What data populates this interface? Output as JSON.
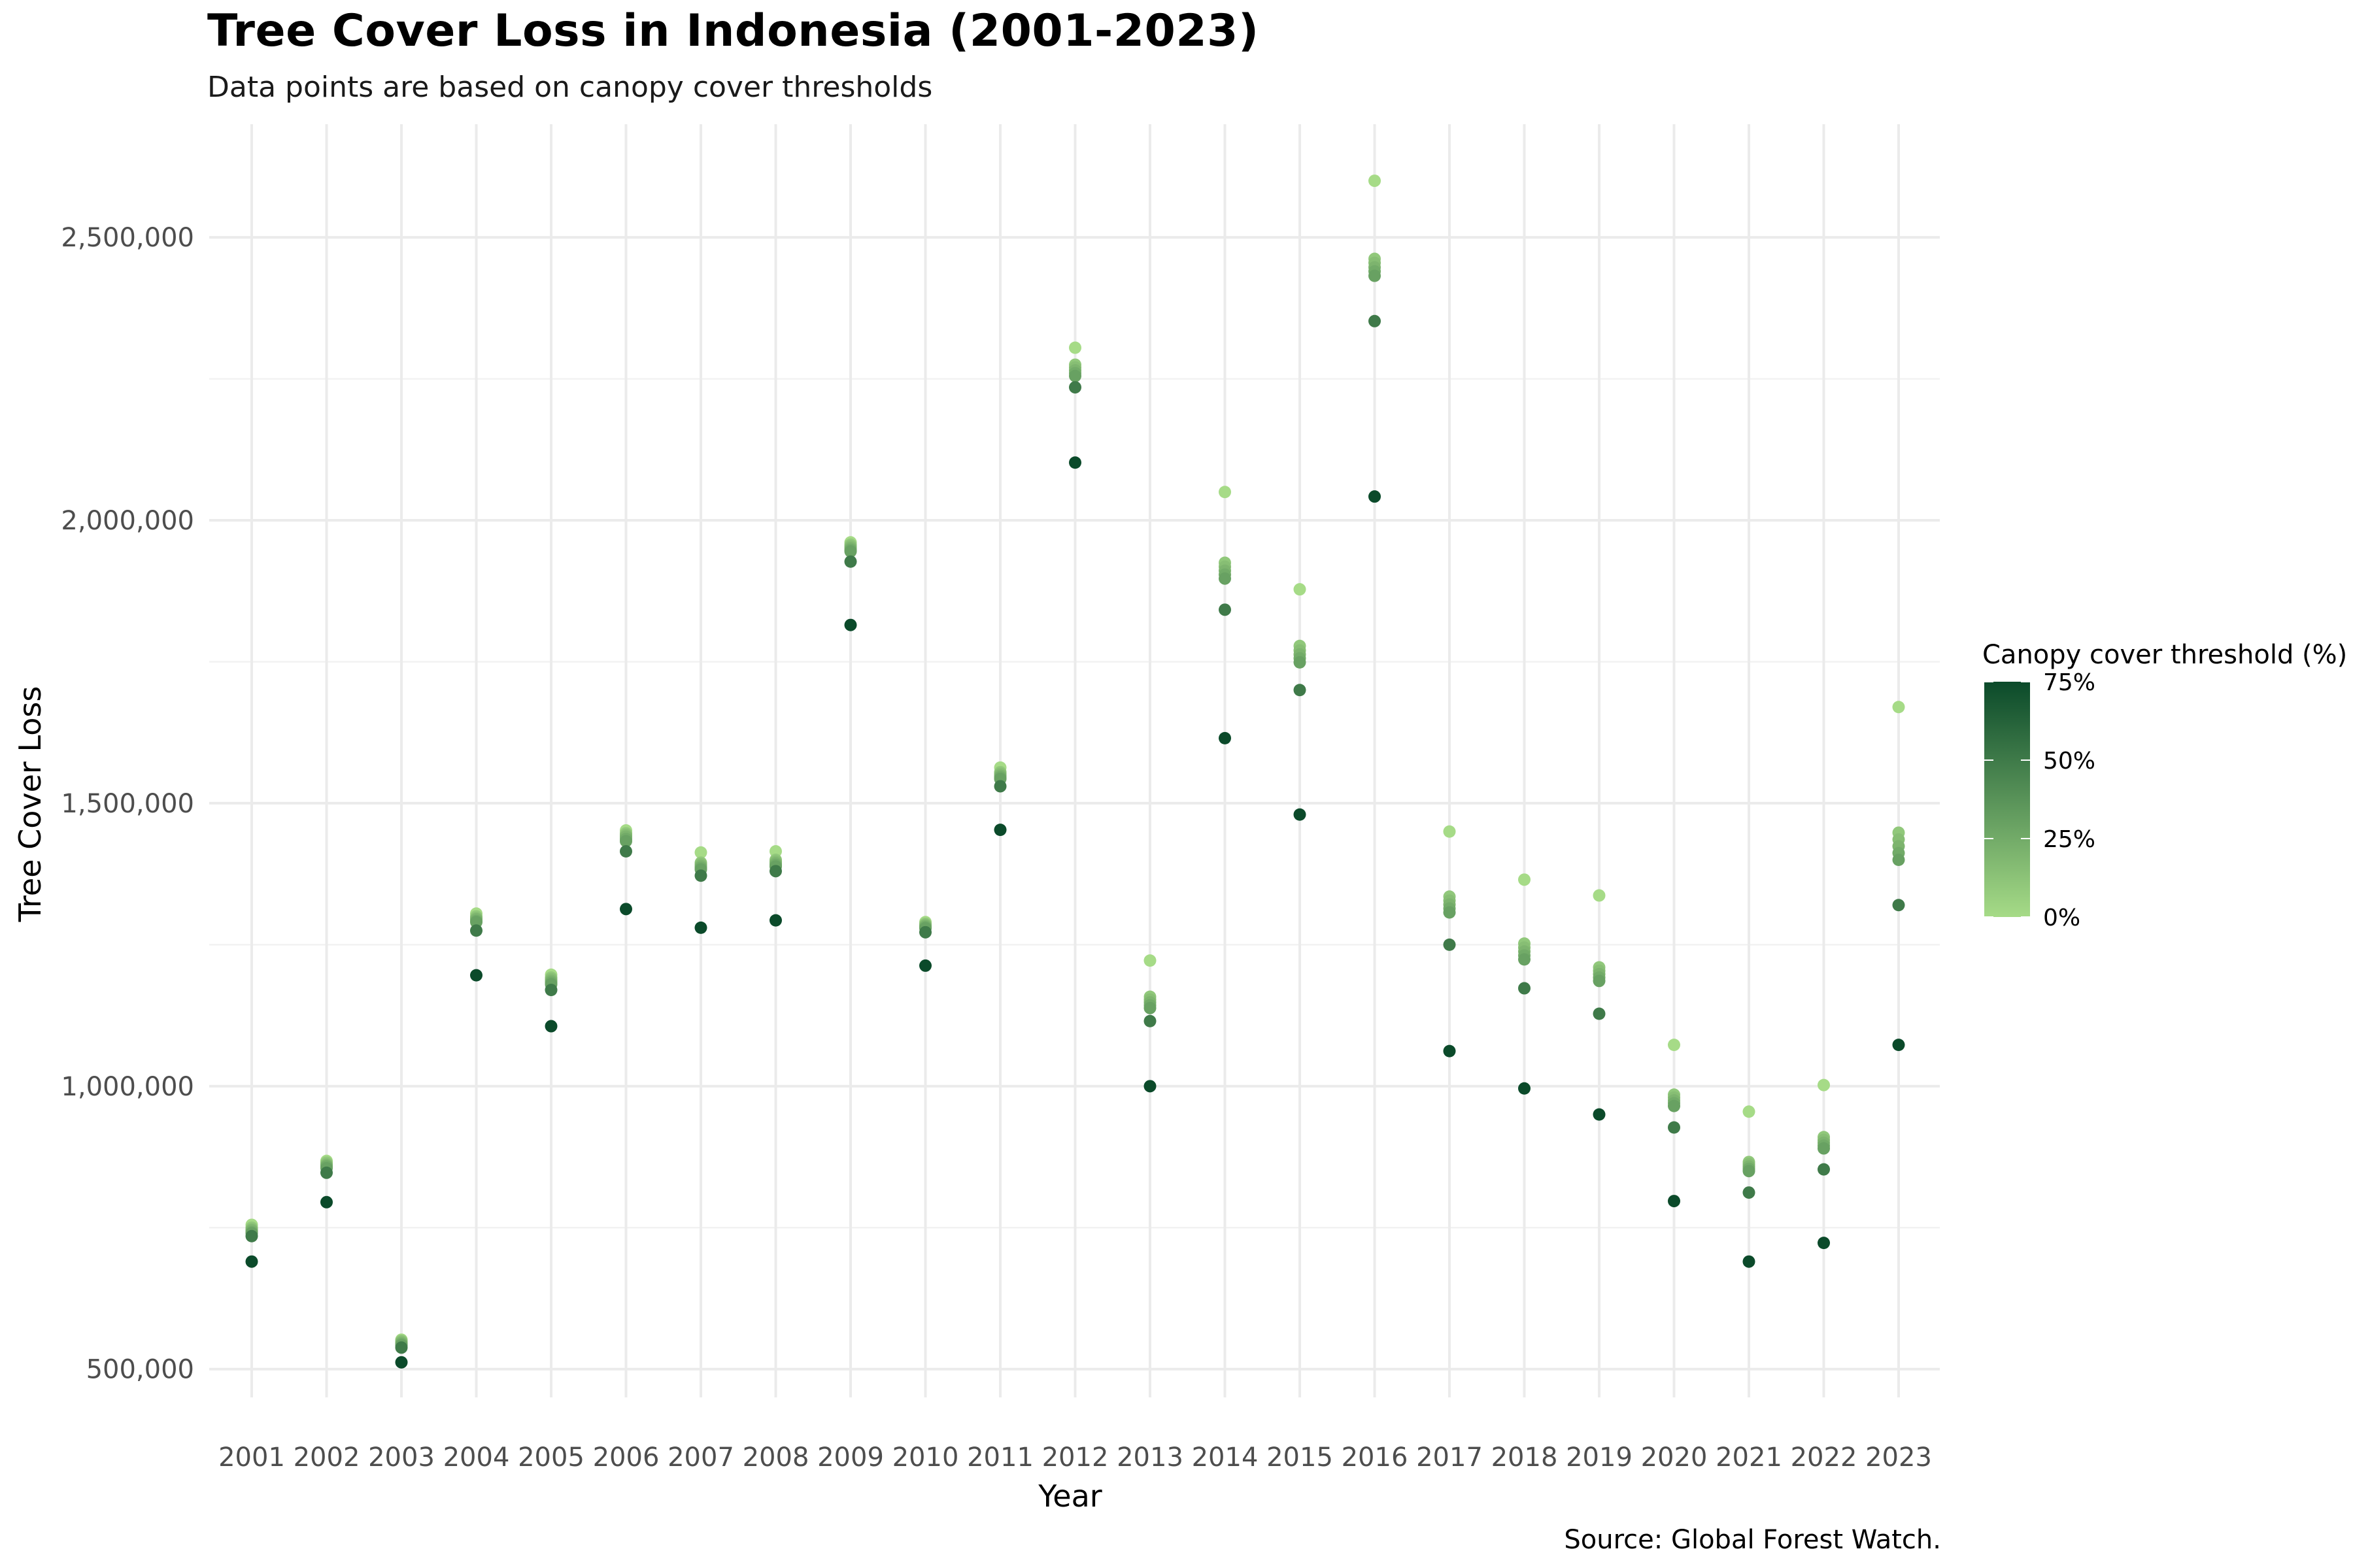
{
  "title": "Tree Cover Loss in Indonesia (2001-2023)",
  "subtitle": "Data points are based on canopy cover thresholds",
  "caption": "Source: Global Forest Watch.",
  "chart_data": {
    "type": "scatter",
    "xlabel": "Year",
    "ylabel": "Tree Cover Loss",
    "ylim": [
      450000,
      2700000
    ],
    "y_ticks": [
      500000,
      1000000,
      1500000,
      2000000,
      2500000
    ],
    "y_tick_labels": [
      "500,000",
      "1,000,000",
      "1,500,000",
      "2,000,000",
      "2,500,000"
    ],
    "grid": true,
    "x": [
      "2001",
      "2002",
      "2003",
      "2004",
      "2005",
      "2006",
      "2007",
      "2008",
      "2009",
      "2010",
      "2011",
      "2012",
      "2013",
      "2014",
      "2015",
      "2016",
      "2017",
      "2018",
      "2019",
      "2020",
      "2021",
      "2022",
      "2023"
    ],
    "thresholds": [
      0,
      10,
      15,
      20,
      25,
      30,
      50,
      75
    ],
    "series": [
      {
        "threshold": 0,
        "values": [
          755000,
          868000,
          552000,
          1305000,
          1197000,
          1452000,
          1413000,
          1415000,
          1961000,
          1290000,
          1563000,
          2305000,
          1222000,
          2050000,
          1878000,
          2600000,
          1450000,
          1365000,
          1337000,
          1073000,
          955000,
          1002000,
          1670000
        ]
      },
      {
        "threshold": 10,
        "values": [
          750000,
          865000,
          550000,
          1300000,
          1192000,
          1447000,
          1395000,
          1400000,
          1957000,
          1287000,
          1555000,
          2275000,
          1158000,
          1925000,
          1778000,
          2462000,
          1335000,
          1252000,
          1210000,
          985000,
          866000,
          910000,
          1448000
        ]
      },
      {
        "threshold": 15,
        "values": [
          747000,
          862000,
          548000,
          1297000,
          1189000,
          1444000,
          1392000,
          1397000,
          1954000,
          1285000,
          1552000,
          2270000,
          1153000,
          1918000,
          1770000,
          2455000,
          1328000,
          1245000,
          1204000,
          980000,
          862000,
          905000,
          1436000
        ]
      },
      {
        "threshold": 20,
        "values": [
          745000,
          860000,
          546000,
          1295000,
          1186000,
          1441000,
          1389000,
          1394000,
          1951000,
          1283000,
          1549000,
          2265000,
          1148000,
          1911000,
          1763000,
          2447000,
          1321000,
          1238000,
          1198000,
          975000,
          858000,
          900000,
          1424000
        ]
      },
      {
        "threshold": 25,
        "values": [
          742000,
          858000,
          544000,
          1292000,
          1183000,
          1437000,
          1386000,
          1391000,
          1948000,
          1281000,
          1546000,
          2260000,
          1143000,
          1904000,
          1756000,
          2440000,
          1314000,
          1231000,
          1192000,
          970000,
          854000,
          895000,
          1412000
        ]
      },
      {
        "threshold": 30,
        "values": [
          740000,
          855000,
          542000,
          1290000,
          1180000,
          1433000,
          1383000,
          1388000,
          1945000,
          1279000,
          1543000,
          2255000,
          1138000,
          1897000,
          1749000,
          2432000,
          1307000,
          1224000,
          1186000,
          965000,
          850000,
          890000,
          1400000
        ]
      },
      {
        "threshold": 50,
        "values": [
          735000,
          847000,
          538000,
          1275000,
          1170000,
          1415000,
          1372000,
          1380000,
          1927000,
          1272000,
          1530000,
          2235000,
          1115000,
          1842000,
          1700000,
          2352000,
          1250000,
          1173000,
          1128000,
          927000,
          812000,
          853000,
          1320000
        ]
      },
      {
        "threshold": 75,
        "values": [
          690000,
          795000,
          512000,
          1196000,
          1106000,
          1313000,
          1280000,
          1293000,
          1815000,
          1213000,
          1453000,
          2102000,
          1000000,
          1615000,
          1480000,
          2042000,
          1062000,
          996000,
          950000,
          797000,
          690000,
          723000,
          1073000
        ]
      }
    ],
    "legend": {
      "title": "Canopy cover threshold (%)",
      "position": "right",
      "labels": [
        "75%",
        "50%",
        "25%",
        "0%"
      ],
      "label_values": [
        75,
        50,
        25,
        0
      ],
      "color_low": "#a6db87",
      "color_high": "#0b4a2a"
    }
  }
}
